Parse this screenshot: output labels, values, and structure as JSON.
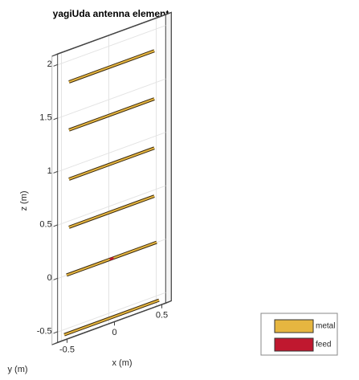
{
  "chart_data": {
    "type": "antenna3d",
    "title": "yagiUda antenna element",
    "xlabel": "x (m)",
    "ylabel": "y (m)",
    "zlabel": "z (m)",
    "xlim": [
      -0.6,
      0.6
    ],
    "ylim": [
      -0.05,
      0.05
    ],
    "zlim": [
      -0.6,
      2.1
    ],
    "xticks": [
      -0.5,
      0,
      0.5
    ],
    "zticks": [
      -0.5,
      0,
      0.5,
      1,
      1.5,
      2
    ],
    "grid": true,
    "element_lengths": [
      1.0,
      0.95,
      0.9,
      0.9,
      0.9,
      0.9
    ],
    "series": [
      {
        "name": "metal",
        "color": "#e6b640",
        "values": [
          -0.55,
          0,
          0.44,
          0.89,
          1.35,
          1.8
        ]
      },
      {
        "name": "feed",
        "color": "#c0182f",
        "values": [
          0
        ]
      }
    ],
    "legend": "lower right"
  }
}
